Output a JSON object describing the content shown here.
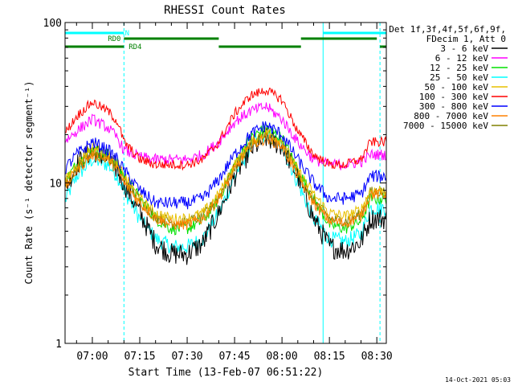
{
  "chart_data": {
    "type": "line",
    "title": "RHESSI Count Rates",
    "xlabel": "Start Time (13-Feb-07 06:51:22)",
    "ylabel": "Count Rate (s⁻¹ detector segment⁻¹)",
    "yscale": "log",
    "xlim": [
      "06:51:22",
      "08:33:00"
    ],
    "ylim": [
      1,
      100
    ],
    "x_ticks": [
      "07:00",
      "07:15",
      "07:30",
      "07:45",
      "08:00",
      "08:15",
      "08:30"
    ],
    "y_ticks": [
      "1",
      "10",
      "100"
    ],
    "legend_header": [
      "Det 1f,3f,4f,5f,6f,9f,",
      "FDecim 1, Att 0"
    ],
    "legend_position": "right-outside",
    "time_points": [
      "06:51",
      "06:55",
      "07:00",
      "07:05",
      "07:08",
      "07:10",
      "07:15",
      "07:20",
      "07:25",
      "07:30",
      "07:35",
      "07:40",
      "07:45",
      "07:50",
      "07:55",
      "08:00",
      "08:05",
      "08:10",
      "08:15",
      "08:20",
      "08:25",
      "08:28"
    ],
    "series": [
      {
        "name": "3 - 6 keV",
        "color": "#000000",
        "values": [
          9,
          13,
          16,
          14,
          12,
          10,
          6.5,
          4.2,
          3.6,
          3.6,
          4.2,
          6.5,
          11,
          16,
          19,
          17,
          11,
          6,
          4,
          3.8,
          4.3,
          6
        ]
      },
      {
        "name": "6 - 12 keV",
        "color": "#ff00ff",
        "values": [
          18,
          21,
          25,
          22,
          19,
          16,
          14.5,
          14,
          14,
          14,
          15,
          18,
          24,
          28,
          30,
          25,
          18,
          14,
          13,
          13,
          13.5,
          15
        ]
      },
      {
        "name": "12 - 25 keV",
        "color": "#00e000",
        "values": [
          10,
          13,
          16,
          15,
          13,
          11,
          8,
          6,
          5.2,
          5.2,
          5.8,
          8,
          13,
          19,
          22,
          19,
          12,
          8,
          5.5,
          5.2,
          5.8,
          8
        ]
      },
      {
        "name": "25 - 50 keV",
        "color": "#00ffff",
        "values": [
          7.5,
          11,
          14,
          13,
          11,
          9,
          6,
          4.5,
          4,
          4,
          4.5,
          6.5,
          11,
          17,
          20,
          17,
          10,
          6,
          4.5,
          4.3,
          4.8,
          7
        ]
      },
      {
        "name": "50 - 100 keV",
        "color": "#e8c000",
        "values": [
          10,
          13,
          17,
          15,
          13,
          11,
          8,
          6.5,
          6,
          6,
          6.5,
          8.5,
          13,
          18,
          21,
          18,
          12,
          8.5,
          6.5,
          6.2,
          6.8,
          9
        ]
      },
      {
        "name": "100 - 300 keV",
        "color": "#ff0000",
        "values": [
          20,
          26,
          32,
          28,
          24,
          18,
          14,
          13,
          13,
          13,
          14,
          18,
          27,
          35,
          38,
          33,
          21,
          15,
          13,
          13,
          14,
          18
        ]
      },
      {
        "name": "300 - 800 keV",
        "color": "#0000ff",
        "values": [
          12,
          15,
          18,
          16,
          14,
          12,
          9,
          7.5,
          7.5,
          7.5,
          8,
          10.5,
          15,
          20,
          23,
          20,
          14,
          10,
          8,
          8,
          8.5,
          11
        ]
      },
      {
        "name": "800 - 7000 keV",
        "color": "#ff8000",
        "values": [
          9,
          12,
          15,
          14,
          12,
          10,
          7.5,
          6,
          5.5,
          5.5,
          6,
          8,
          12,
          17,
          19,
          17,
          11,
          7.5,
          5.8,
          5.6,
          6.2,
          8.5
        ]
      },
      {
        "name": "7000 - 15000 keV",
        "color": "#808000",
        "values": [
          9.5,
          12.5,
          15.5,
          14.5,
          12.5,
          10.5,
          7.8,
          6.2,
          5.7,
          5.7,
          6.2,
          8.2,
          12.5,
          17.5,
          19.5,
          17.5,
          11.5,
          7.8,
          6,
          5.8,
          6.4,
          8.8
        ]
      }
    ],
    "state_bars": [
      {
        "label": "N",
        "color": "#00ffff",
        "segments": [
          [
            "06:51:22",
            "07:10"
          ],
          [
            "08:13",
            "08:33"
          ]
        ]
      },
      {
        "label": "RD0",
        "color": "#008000",
        "segments": [
          [
            "07:10",
            "07:40"
          ],
          [
            "08:06",
            "08:30"
          ]
        ]
      },
      {
        "label": "RD4",
        "color": "#008000",
        "segments": [
          [
            "06:51:22",
            "07:10"
          ],
          [
            "07:40",
            "08:06"
          ],
          [
            "08:31",
            "08:33"
          ]
        ]
      }
    ],
    "vertical_markers": [
      {
        "time": "06:51:22",
        "style": "solid",
        "color": "#00ffff"
      },
      {
        "time": "07:10",
        "style": "dashed",
        "color": "#00ffff"
      },
      {
        "time": "08:13",
        "style": "solid",
        "color": "#00ffff"
      },
      {
        "time": "08:31",
        "style": "dashed",
        "color": "#00ffff"
      }
    ]
  },
  "footer": {
    "timestamp": "14-Oct-2021 05:03"
  }
}
